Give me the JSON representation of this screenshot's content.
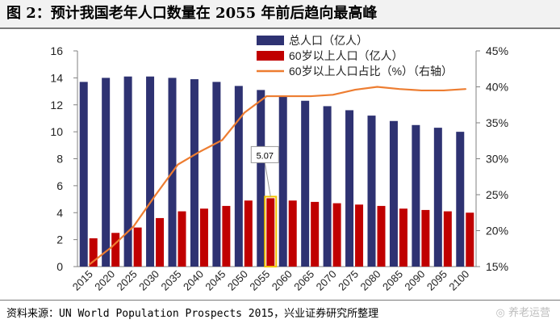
{
  "figure": {
    "title": "图 2：预计我国老年人口数量在 2055 年前后趋向最高峰",
    "source": "资料来源：UN World Population Prospects 2015，兴业证券研究所整理",
    "watermark": "养老运营"
  },
  "chart_data": {
    "type": "bar",
    "categories": [
      "2015",
      "2020",
      "2025",
      "2030",
      "2035",
      "2040",
      "2045",
      "2050",
      "2055",
      "2060",
      "2065",
      "2070",
      "2075",
      "2080",
      "2085",
      "2090",
      "2095",
      "2100"
    ],
    "series": [
      {
        "name": "总人口（亿人）",
        "kind": "bar",
        "axis": "left",
        "color": "#2e3272",
        "values": [
          13.7,
          14.0,
          14.1,
          14.1,
          14.0,
          13.9,
          13.7,
          13.4,
          13.1,
          12.7,
          12.3,
          11.9,
          11.6,
          11.2,
          10.8,
          10.5,
          10.3,
          10.0
        ]
      },
      {
        "name": "60岁以上人口（亿人）",
        "kind": "bar",
        "axis": "left",
        "color": "#c00000",
        "values": [
          2.1,
          2.5,
          2.9,
          3.6,
          4.1,
          4.3,
          4.5,
          4.9,
          5.07,
          4.9,
          4.8,
          4.7,
          4.6,
          4.5,
          4.3,
          4.2,
          4.1,
          4.0
        ]
      },
      {
        "name": "60岁以上人口占比（%）（右轴）",
        "kind": "line",
        "axis": "right",
        "color": "#ed7d31",
        "values": [
          15.3,
          17.7,
          20.6,
          25.0,
          29.2,
          31.0,
          32.6,
          36.4,
          38.7,
          38.7,
          38.7,
          38.9,
          39.6,
          40.0,
          39.7,
          39.5,
          39.5,
          39.7
        ]
      }
    ],
    "yleft": {
      "min": 0,
      "max": 16,
      "ticks": [
        0,
        2,
        4,
        6,
        8,
        10,
        12,
        14,
        16
      ]
    },
    "yright": {
      "min": 15,
      "max": 45,
      "ticks": [
        "15%",
        "20%",
        "25%",
        "30%",
        "35%",
        "40%",
        "45%"
      ]
    },
    "highlight": {
      "category": "2055",
      "label": "5.07"
    },
    "legend_position": "top-center",
    "grid": false
  }
}
